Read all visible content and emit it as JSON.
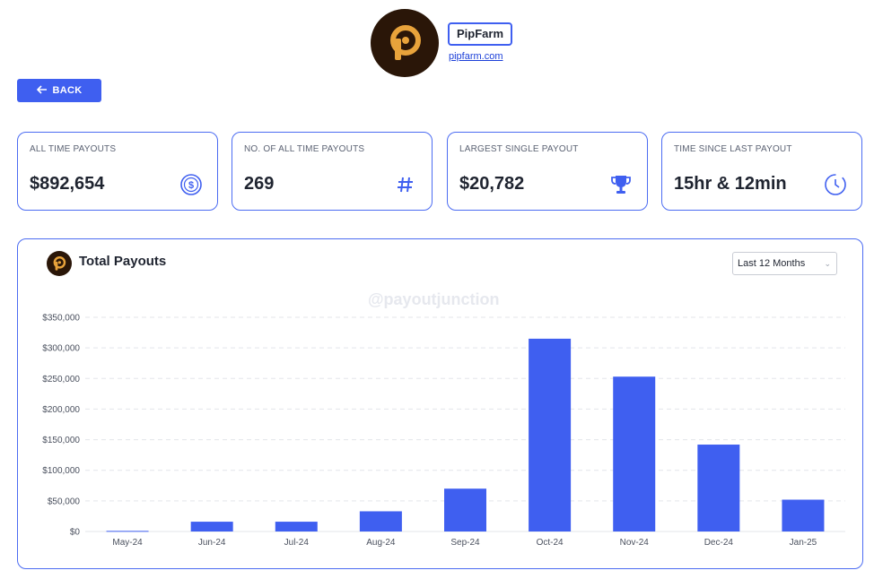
{
  "firm": {
    "name": "PipFarm",
    "link": "pipfarm.com"
  },
  "back_button": {
    "label": "BACK",
    "icon": "arrow-left-icon"
  },
  "stats": [
    {
      "label": "ALL TIME PAYOUTS",
      "value": "$892,654",
      "icon": "dollar-coin-icon"
    },
    {
      "label": "NO. OF ALL TIME PAYOUTS",
      "value": "269",
      "icon": "hash-icon"
    },
    {
      "label": "LARGEST SINGLE PAYOUT",
      "value": "$20,782",
      "icon": "trophy-icon"
    },
    {
      "label": "TIME SINCE LAST PAYOUT",
      "value": "15hr & 12min",
      "icon": "clock-icon"
    }
  ],
  "chart": {
    "range_selected": "Last 12 Months",
    "watermark": "@payoutjunction"
  },
  "colors": {
    "accent": "#3f5ff0",
    "logo_bg": "#2a1608",
    "logo_mark": "#e8a33b"
  },
  "chart_data": {
    "type": "bar",
    "title": "Total Payouts",
    "categories": [
      "May-24",
      "Jun-24",
      "Jul-24",
      "Aug-24",
      "Sep-24",
      "Oct-24",
      "Nov-24",
      "Dec-24",
      "Jan-25"
    ],
    "values": [
      1000,
      16000,
      16000,
      33000,
      70000,
      315000,
      253000,
      142000,
      52000
    ],
    "ylim": [
      0,
      350000
    ],
    "yticks": [
      0,
      50000,
      100000,
      150000,
      200000,
      250000,
      300000,
      350000
    ],
    "ytick_labels": [
      "$0",
      "$50,000",
      "$100,000",
      "$150,000",
      "$200,000",
      "$250,000",
      "$300,000",
      "$350,000"
    ],
    "grid": true
  }
}
